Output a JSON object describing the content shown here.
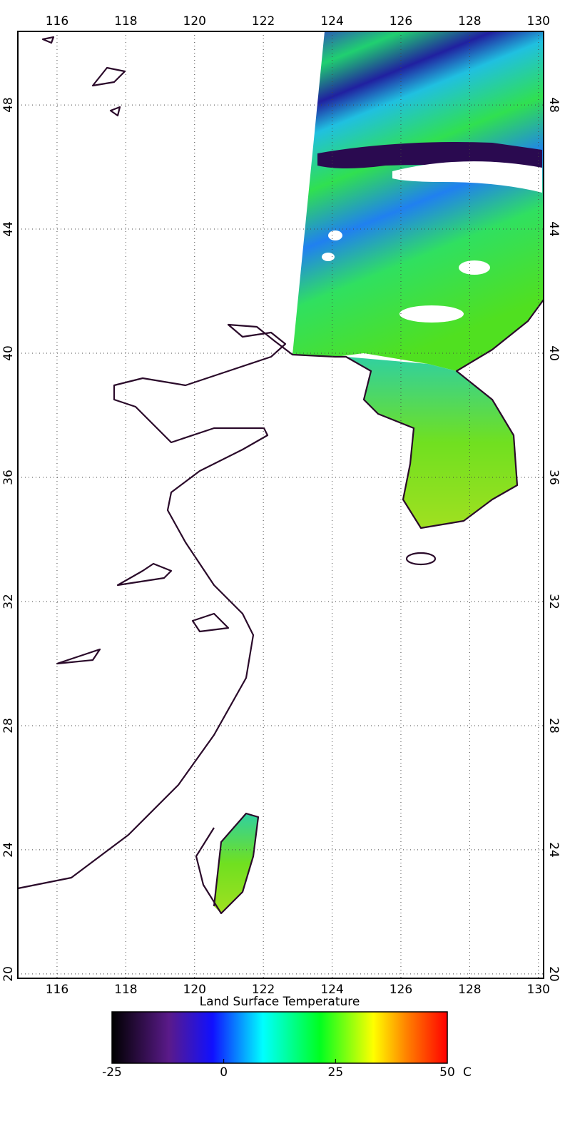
{
  "map": {
    "xlim": [
      114.86,
      130.15
    ],
    "xticks": [
      116,
      118,
      120,
      122,
      124,
      126,
      128,
      130
    ],
    "ylim": [
      19.86,
      50.37
    ],
    "yticks": [
      20,
      24,
      28,
      32,
      36,
      40,
      44,
      48
    ]
  },
  "colorbar": {
    "title": "Land Surface Temperature",
    "lim": [
      -25,
      50
    ],
    "ticks": [
      -25,
      0,
      25,
      50
    ],
    "unit": "C"
  }
}
